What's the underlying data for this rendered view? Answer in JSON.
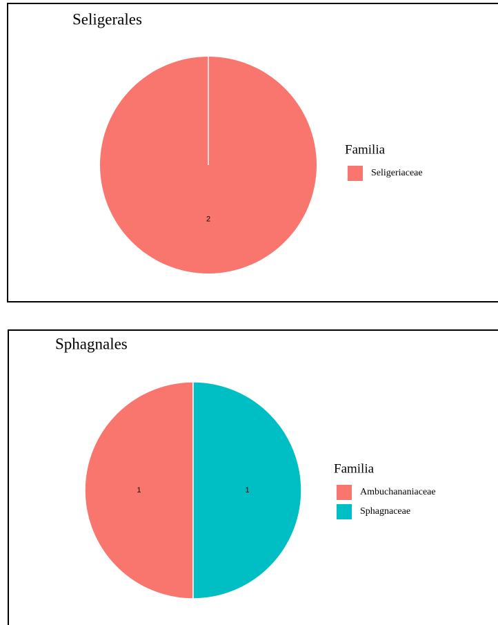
{
  "chart_data": [
    {
      "type": "pie",
      "title": "Seligerales",
      "legend_title": "Familia",
      "categories": [
        "Seligeriaceae"
      ],
      "values": [
        2
      ],
      "colors": [
        "#F8766D"
      ],
      "legend": "right"
    },
    {
      "type": "pie",
      "title": "Sphagnales",
      "legend_title": "Familia",
      "categories": [
        "Ambuchananiaceae",
        "Sphagnaceae"
      ],
      "values": [
        1,
        1
      ],
      "colors": [
        "#F8766D",
        "#00BFC4"
      ],
      "legend": "right"
    }
  ]
}
